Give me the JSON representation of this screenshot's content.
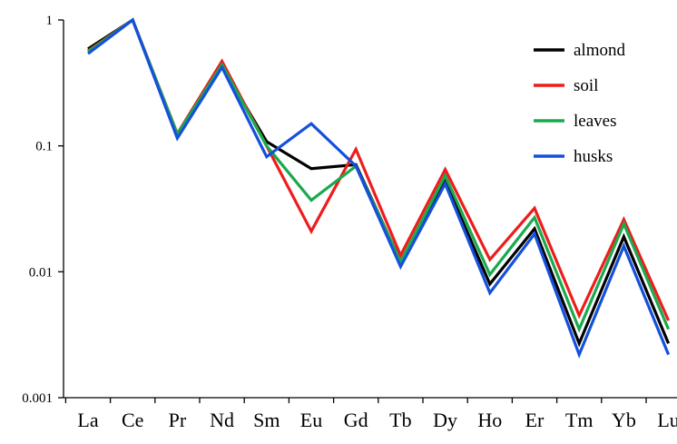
{
  "chart_data": {
    "type": "line",
    "title": "",
    "xlabel": "",
    "ylabel": "",
    "yscale": "log",
    "ylim": [
      0.001,
      1
    ],
    "yticks": [
      {
        "value": 1,
        "label": "1"
      },
      {
        "value": 0.1,
        "label": "0.1"
      },
      {
        "value": 0.01,
        "label": "0.01"
      },
      {
        "value": 0.001,
        "label": "0.001"
      }
    ],
    "categories": [
      "La",
      "Ce",
      "Pr",
      "Nd",
      "Sm",
      "Eu",
      "Gd",
      "Tb",
      "Dy",
      "Ho",
      "Er",
      "Tm",
      "Yb",
      "Lu"
    ],
    "grid": false,
    "legend_position": "top-right",
    "series": [
      {
        "name": "almond",
        "color": "#000000",
        "values": [
          0.59,
          1.0,
          0.118,
          0.43,
          0.108,
          0.066,
          0.071,
          0.012,
          0.052,
          0.008,
          0.022,
          0.0027,
          0.019,
          0.0027
        ]
      },
      {
        "name": "soil",
        "color": "#ee1c1c",
        "values": [
          0.57,
          1.0,
          0.125,
          0.47,
          0.1,
          0.021,
          0.094,
          0.0135,
          0.065,
          0.0125,
          0.032,
          0.0045,
          0.026,
          0.0041
        ]
      },
      {
        "name": "leaves",
        "color": "#1aaa4e",
        "values": [
          0.56,
          1.0,
          0.124,
          0.44,
          0.1,
          0.037,
          0.069,
          0.012,
          0.058,
          0.0095,
          0.027,
          0.0035,
          0.024,
          0.0035
        ]
      },
      {
        "name": "husks",
        "color": "#1450dc",
        "values": [
          0.54,
          1.0,
          0.115,
          0.42,
          0.082,
          0.15,
          0.069,
          0.011,
          0.05,
          0.0068,
          0.02,
          0.0022,
          0.016,
          0.0022
        ]
      }
    ]
  }
}
